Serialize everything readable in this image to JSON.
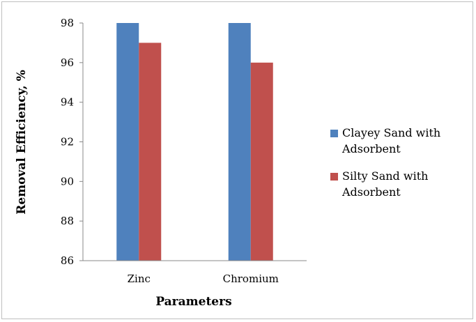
{
  "chart_data": {
    "type": "bar",
    "categories": [
      "Zinc",
      "Chromium"
    ],
    "series": [
      {
        "name": "Clayey Sand with Adsorbent",
        "values": [
          98,
          98
        ],
        "color": "#4f81bd"
      },
      {
        "name": "Silty Sand with Adsorbent",
        "values": [
          97,
          96
        ],
        "color": "#c0504d"
      }
    ],
    "xlabel": "Parameters",
    "ylabel": "Removal Efficiency, %",
    "ylim": [
      86,
      98
    ],
    "yticks": [
      86,
      88,
      90,
      92,
      94,
      96,
      98
    ],
    "grid": false,
    "legend": {
      "placement": "right",
      "entries": [
        {
          "lines": [
            "Clayey Sand with",
            "Adsorbent"
          ]
        },
        {
          "lines": [
            "Silty Sand with",
            "Adsorbent"
          ]
        }
      ]
    }
  }
}
